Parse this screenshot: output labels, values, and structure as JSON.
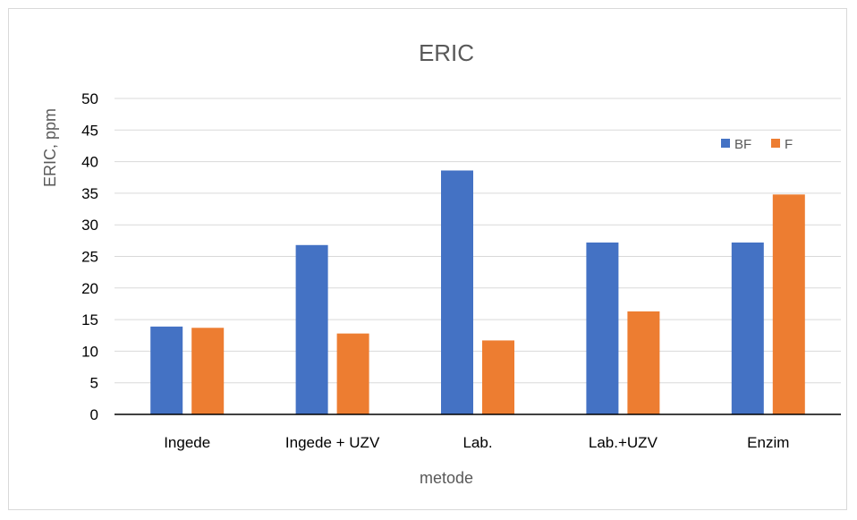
{
  "chart_data": {
    "type": "bar",
    "title": "ERIC",
    "xlabel": "metode",
    "ylabel": "ERIC, ppm",
    "categories": [
      "Ingede",
      "Ingede + UZV",
      "Lab.",
      "Lab.+UZV",
      "Enzim"
    ],
    "series": [
      {
        "name": "BF",
        "color": "#4472C4",
        "values": [
          13.9,
          26.8,
          38.6,
          27.2,
          27.2
        ]
      },
      {
        "name": "F",
        "color": "#ED7D31",
        "values": [
          13.7,
          12.8,
          11.7,
          16.3,
          34.8
        ]
      }
    ],
    "ylim": [
      0,
      50
    ],
    "yticks": [
      "0",
      "5",
      "10",
      "15",
      "20",
      "25",
      "30",
      "35",
      "40",
      "45",
      "50"
    ],
    "grid": true,
    "legend_position": "top-right"
  }
}
